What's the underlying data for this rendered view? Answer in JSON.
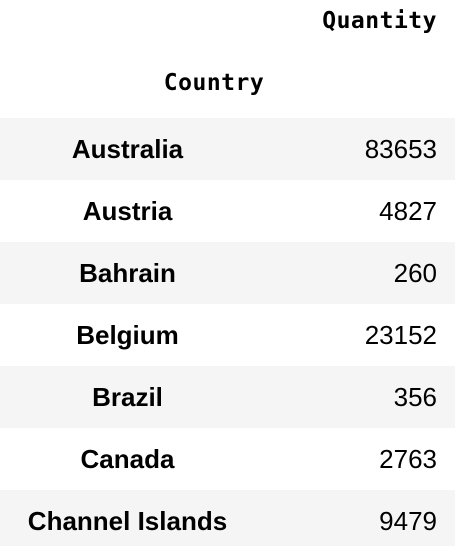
{
  "table": {
    "column_header": "Quantity",
    "index_header": "Country",
    "rows": [
      {
        "country": "Australia",
        "quantity": "83653"
      },
      {
        "country": "Austria",
        "quantity": "4827"
      },
      {
        "country": "Bahrain",
        "quantity": "260"
      },
      {
        "country": "Belgium",
        "quantity": "23152"
      },
      {
        "country": "Brazil",
        "quantity": "356"
      },
      {
        "country": "Canada",
        "quantity": "2763"
      },
      {
        "country": "Channel Islands",
        "quantity": "9479"
      }
    ]
  }
}
